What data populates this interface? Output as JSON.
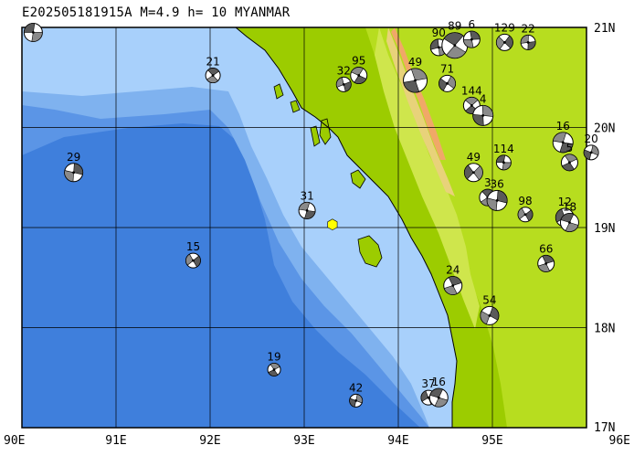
{
  "title": "E202505181915A M=4.9 h= 10 MYANMAR",
  "extent": {
    "lon_min": 90,
    "lon_max": 96,
    "lat_min": 17,
    "lat_max": 21
  },
  "lon_ticks": [
    {
      "value": 90,
      "label": "90E"
    },
    {
      "value": 91,
      "label": "91E"
    },
    {
      "value": 92,
      "label": "92E"
    },
    {
      "value": 93,
      "label": "93E"
    },
    {
      "value": 94,
      "label": "94E"
    },
    {
      "value": 95,
      "label": "95E"
    },
    {
      "value": 96,
      "label": "96E"
    }
  ],
  "lat_ticks": [
    {
      "value": 21,
      "label": "21N"
    },
    {
      "value": 20,
      "label": "20N"
    },
    {
      "value": 19,
      "label": "19N"
    },
    {
      "value": 18,
      "label": "18N"
    },
    {
      "value": 17,
      "label": "17N"
    }
  ],
  "epicenter": {
    "lon": 93.3,
    "lat": 19.03,
    "color": "#ffff00"
  },
  "colors": {
    "deep_ocean": "#3f7fdc",
    "mid_ocean": "#5b95e6",
    "slope": "#7fb2ef",
    "shelf": "#a8d0fb",
    "lowland": "#9ccc00",
    "plain": "#b7dd1f",
    "hills": "#cfe64c",
    "highland": "#e8d27a",
    "peaks": "#f0a868"
  },
  "events": [
    {
      "lon": 90.12,
      "lat": 20.95,
      "depth": "",
      "size": 10
    },
    {
      "lon": 92.03,
      "lat": 20.52,
      "depth": "21",
      "size": 8
    },
    {
      "lon": 90.55,
      "lat": 19.55,
      "depth": "29",
      "size": 10
    },
    {
      "lon": 91.82,
      "lat": 18.67,
      "depth": "15",
      "size": 8
    },
    {
      "lon": 93.03,
      "lat": 19.17,
      "depth": "31",
      "size": 9
    },
    {
      "lon": 92.68,
      "lat": 17.58,
      "depth": "19",
      "size": 7
    },
    {
      "lon": 93.55,
      "lat": 17.27,
      "depth": "42",
      "size": 7
    },
    {
      "lon": 94.32,
      "lat": 17.3,
      "depth": "37",
      "size": 8
    },
    {
      "lon": 94.43,
      "lat": 17.3,
      "depth": "16",
      "size": 10
    },
    {
      "lon": 94.58,
      "lat": 18.42,
      "depth": "24",
      "size": 10
    },
    {
      "lon": 94.97,
      "lat": 18.12,
      "depth": "54",
      "size": 10
    },
    {
      "lon": 93.42,
      "lat": 20.43,
      "depth": "32",
      "size": 8
    },
    {
      "lon": 93.58,
      "lat": 20.52,
      "depth": "95",
      "size": 9
    },
    {
      "lon": 94.18,
      "lat": 20.47,
      "depth": "49",
      "size": 13
    },
    {
      "lon": 94.52,
      "lat": 20.44,
      "depth": "71",
      "size": 9
    },
    {
      "lon": 94.43,
      "lat": 20.8,
      "depth": "90",
      "size": 9
    },
    {
      "lon": 94.6,
      "lat": 20.82,
      "depth": "89",
      "size": 14
    },
    {
      "lon": 94.78,
      "lat": 20.88,
      "depth": "6",
      "size": 9
    },
    {
      "lon": 95.13,
      "lat": 20.85,
      "depth": "129",
      "size": 9
    },
    {
      "lon": 95.38,
      "lat": 20.85,
      "depth": "22",
      "size": 8
    },
    {
      "lon": 94.78,
      "lat": 20.22,
      "depth": "144",
      "size": 9
    },
    {
      "lon": 94.9,
      "lat": 20.12,
      "depth": "4",
      "size": 11
    },
    {
      "lon": 94.8,
      "lat": 19.55,
      "depth": "49",
      "size": 10
    },
    {
      "lon": 95.12,
      "lat": 19.65,
      "depth": "114",
      "size": 8
    },
    {
      "lon": 94.95,
      "lat": 19.3,
      "depth": "3",
      "size": 9
    },
    {
      "lon": 95.05,
      "lat": 19.27,
      "depth": "36",
      "size": 11
    },
    {
      "lon": 95.35,
      "lat": 19.13,
      "depth": "98",
      "size": 8
    },
    {
      "lon": 95.75,
      "lat": 19.85,
      "depth": "16",
      "size": 11
    },
    {
      "lon": 95.82,
      "lat": 19.65,
      "depth": "5",
      "size": 9
    },
    {
      "lon": 96.05,
      "lat": 19.75,
      "depth": "20",
      "size": 8
    },
    {
      "lon": 95.77,
      "lat": 19.1,
      "depth": "12",
      "size": 10
    },
    {
      "lon": 95.82,
      "lat": 19.05,
      "depth": "18",
      "size": 10
    },
    {
      "lon": 95.57,
      "lat": 18.64,
      "depth": "66",
      "size": 9
    }
  ]
}
